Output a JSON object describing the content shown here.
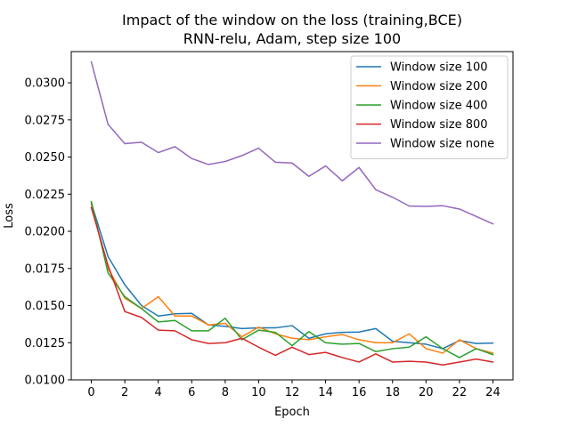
{
  "chart_data": {
    "type": "line",
    "title": "Impact of the window on the loss (training,BCE)",
    "subtitle": "RNN-relu, Adam, step size 100",
    "xlabel": "Epoch",
    "ylabel": "Loss",
    "xlim": [
      -1.2,
      25.2
    ],
    "ylim": [
      0.01,
      0.0321
    ],
    "x_ticks": [
      0,
      2,
      4,
      6,
      8,
      10,
      12,
      14,
      16,
      18,
      20,
      22,
      24
    ],
    "y_ticks": [
      0.01,
      0.0125,
      0.015,
      0.0175,
      0.02,
      0.0225,
      0.025,
      0.0275,
      0.03
    ],
    "y_tick_labels": [
      "0.0100",
      "0.0125",
      "0.0150",
      "0.0175",
      "0.0200",
      "0.0225",
      "0.0250",
      "0.0275",
      "0.0300"
    ],
    "grid": false,
    "legend_position": "top-right",
    "x": [
      0,
      1,
      2,
      3,
      4,
      5,
      6,
      7,
      8,
      9,
      10,
      11,
      12,
      13,
      14,
      15,
      16,
      17,
      18,
      19,
      20,
      21,
      22,
      23,
      24
    ],
    "series": [
      {
        "name": "Window size 100",
        "color": "#1f77b4",
        "values": [
          0.0219,
          0.0183,
          0.0164,
          0.015,
          0.0143,
          0.01445,
          0.01448,
          0.0137,
          0.0136,
          0.01345,
          0.0135,
          0.0135,
          0.01365,
          0.0128,
          0.0131,
          0.0132,
          0.01322,
          0.01345,
          0.0126,
          0.0125,
          0.0124,
          0.0121,
          0.01265,
          0.01245,
          0.01248
        ]
      },
      {
        "name": "Window size 200",
        "color": "#ff7f0e",
        "values": [
          0.0218,
          0.0175,
          0.0155,
          0.0148,
          0.0156,
          0.0143,
          0.0143,
          0.0137,
          0.0138,
          0.0129,
          0.01355,
          0.0131,
          0.0128,
          0.0127,
          0.0129,
          0.01305,
          0.0127,
          0.0125,
          0.0125,
          0.0131,
          0.0121,
          0.0118,
          0.0127,
          0.0121,
          0.0118
        ]
      },
      {
        "name": "Window size 400",
        "color": "#2ca02c",
        "values": [
          0.022,
          0.0172,
          0.0156,
          0.0148,
          0.0139,
          0.014,
          0.0133,
          0.0133,
          0.01415,
          0.0127,
          0.01335,
          0.0132,
          0.0123,
          0.01325,
          0.0125,
          0.0124,
          0.01245,
          0.0119,
          0.0121,
          0.0122,
          0.0129,
          0.0121,
          0.0115,
          0.0121,
          0.0117
        ]
      },
      {
        "name": "Window size 800",
        "color": "#d62728",
        "values": [
          0.0216,
          0.0177,
          0.0146,
          0.0142,
          0.01335,
          0.0133,
          0.0127,
          0.01245,
          0.0125,
          0.0128,
          0.0122,
          0.01165,
          0.0122,
          0.0117,
          0.01185,
          0.0115,
          0.0112,
          0.01175,
          0.0112,
          0.01125,
          0.0112,
          0.011,
          0.0112,
          0.0114,
          0.0112
        ]
      },
      {
        "name": "Window size none",
        "color": "#9467bd",
        "values": [
          0.0314,
          0.0272,
          0.0259,
          0.026,
          0.0253,
          0.0257,
          0.0249,
          0.0245,
          0.0247,
          0.0251,
          0.0256,
          0.02465,
          0.0246,
          0.0237,
          0.0244,
          0.0234,
          0.0243,
          0.0228,
          0.0223,
          0.0217,
          0.02168,
          0.02172,
          0.0215,
          0.021,
          0.0205
        ]
      }
    ]
  }
}
